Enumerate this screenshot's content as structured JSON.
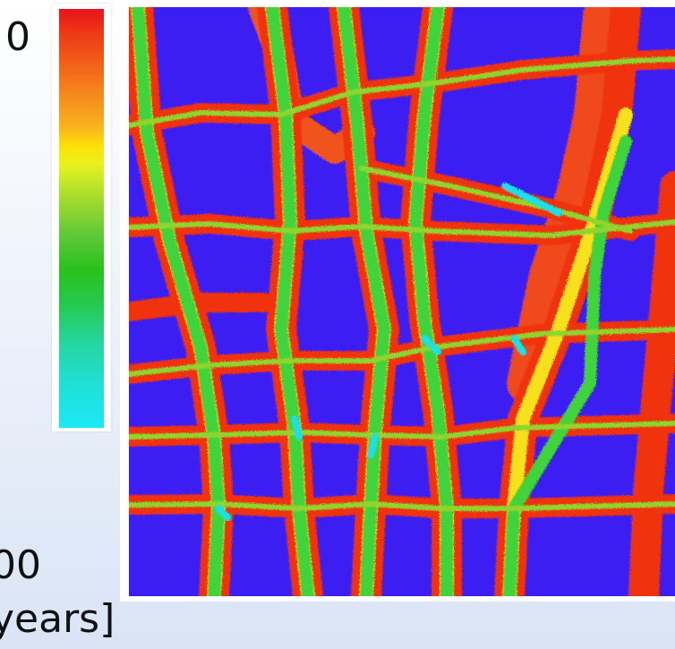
{
  "colorbar": {
    "top_value": "0",
    "bottom_value": "00",
    "unit": "years]",
    "colors": [
      "#e8121a",
      "#f6861e",
      "#fde207",
      "#8fd52f",
      "#2ac11d",
      "#26d6a2",
      "#1be9f4"
    ]
  },
  "map": {
    "background_color": "#3c1ef2",
    "edge_color": "#f0300f",
    "core_color": "#3fd33a",
    "accent_color": "#1fe0e6"
  }
}
